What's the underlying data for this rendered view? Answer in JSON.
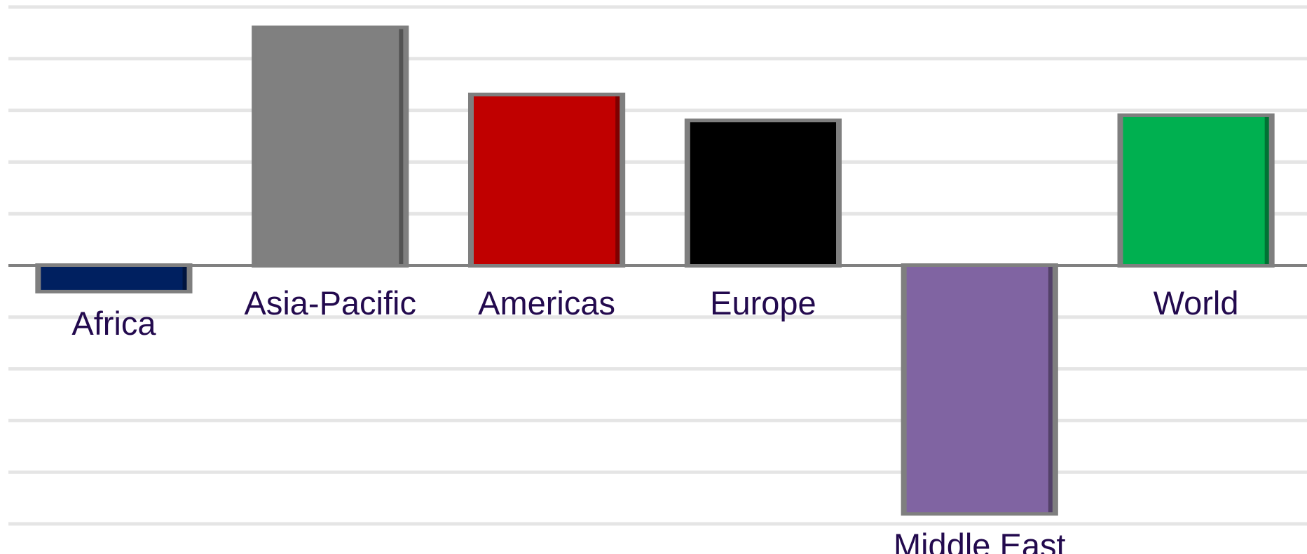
{
  "chart_data": {
    "type": "bar",
    "title": "",
    "xlabel": "",
    "ylabel": "",
    "categories": [
      "Africa",
      "Asia-Pacific",
      "Americas",
      "Europe",
      "Middle East",
      "World"
    ],
    "values": [
      -0.5,
      4.6,
      3.3,
      2.8,
      -4.8,
      2.9
    ],
    "ylim": [
      -5,
      5
    ],
    "grid": true,
    "legend": "none",
    "colors": [
      "#002060",
      "#808080",
      "#c00000",
      "#000000",
      "#8064a2",
      "#00b050"
    ],
    "label_color": "#230a4e",
    "gridline_color": "#e5e5e5",
    "baseline_color": "#808080"
  }
}
